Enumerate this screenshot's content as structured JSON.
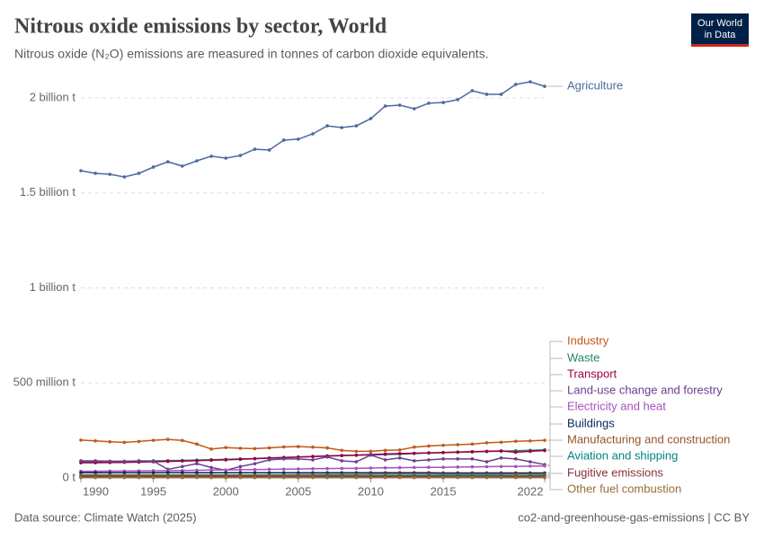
{
  "chart_data": {
    "type": "line",
    "title": "Nitrous oxide emissions by sector, World",
    "subtitle": "Nitrous oxide (N₂O) emissions are measured in tonnes of carbon dioxide equivalents.",
    "source": "Data source: Climate Watch (2025)",
    "footer_right": "co2-and-greenhouse-gas-emissions | CC BY",
    "logo": [
      "Our World",
      "in Data"
    ],
    "x": [
      1990,
      1991,
      1992,
      1993,
      1994,
      1995,
      1996,
      1997,
      1998,
      1999,
      2000,
      2001,
      2002,
      2003,
      2004,
      2005,
      2006,
      2007,
      2008,
      2009,
      2010,
      2011,
      2012,
      2013,
      2014,
      2015,
      2016,
      2017,
      2018,
      2019,
      2020,
      2021,
      2022
    ],
    "xlim": [
      1990,
      2022
    ],
    "xticks": [
      1990,
      1995,
      2000,
      2005,
      2010,
      2015,
      2022
    ],
    "ylim": [
      0,
      2100000000
    ],
    "yticks": [
      {
        "value": 0,
        "label": "0 t"
      },
      {
        "value": 500000000,
        "label": "500 million t"
      },
      {
        "value": 1000000000,
        "label": "1 billion t"
      },
      {
        "value": 1500000000,
        "label": "1.5 billion t"
      },
      {
        "value": 2000000000,
        "label": "2 billion t"
      }
    ],
    "grid": true,
    "series": [
      {
        "name": "Agriculture",
        "color": "#4c6a9c",
        "values": [
          1617000000,
          1603000000,
          1598000000,
          1584000000,
          1603000000,
          1636000000,
          1664000000,
          1641000000,
          1669000000,
          1693000000,
          1683000000,
          1697000000,
          1730000000,
          1726000000,
          1778000000,
          1783000000,
          1811000000,
          1853000000,
          1844000000,
          1853000000,
          1891000000,
          1957000000,
          1962000000,
          1943000000,
          1972000000,
          1976000000,
          1991000000,
          2038000000,
          2019000000,
          2019000000,
          2071000000,
          2085000000,
          2061000000
        ]
      },
      {
        "name": "Industry",
        "color": "#c05917",
        "values": [
          199000000,
          195000000,
          190000000,
          187000000,
          192000000,
          198000000,
          203000000,
          197000000,
          178000000,
          152000000,
          160000000,
          156000000,
          154000000,
          158000000,
          163000000,
          165000000,
          162000000,
          158000000,
          145000000,
          140000000,
          140000000,
          145000000,
          147000000,
          162000000,
          168000000,
          172000000,
          175000000,
          178000000,
          185000000,
          188000000,
          193000000,
          195000000,
          198000000
        ]
      },
      {
        "name": "Waste",
        "color": "#2c8465",
        "values": [
          85000000,
          86000000,
          87000000,
          88000000,
          89000000,
          90000000,
          91000000,
          92000000,
          94000000,
          96000000,
          98000000,
          100000000,
          102000000,
          105000000,
          108000000,
          110000000,
          112000000,
          115000000,
          117000000,
          119000000,
          121000000,
          123000000,
          125000000,
          128000000,
          131000000,
          133000000,
          135000000,
          137000000,
          139000000,
          141000000,
          143000000,
          145000000,
          148000000
        ]
      },
      {
        "name": "Transport",
        "color": "#970046",
        "values": [
          80000000,
          80000000,
          81000000,
          82000000,
          83000000,
          85000000,
          87000000,
          89000000,
          91000000,
          93000000,
          95000000,
          98000000,
          101000000,
          104000000,
          107000000,
          110000000,
          113000000,
          116000000,
          118000000,
          120000000,
          123000000,
          126000000,
          128000000,
          130000000,
          132000000,
          134000000,
          136000000,
          138000000,
          140000000,
          142000000,
          135000000,
          140000000,
          144000000
        ]
      },
      {
        "name": "Land-use change and forestry",
        "color": "#6d3e91",
        "values": [
          90000000,
          90000000,
          88000000,
          87000000,
          90000000,
          88000000,
          45000000,
          60000000,
          75000000,
          55000000,
          40000000,
          60000000,
          75000000,
          95000000,
          100000000,
          100000000,
          95000000,
          110000000,
          90000000,
          85000000,
          120000000,
          95000000,
          105000000,
          90000000,
          95000000,
          100000000,
          100000000,
          100000000,
          85000000,
          105000000,
          100000000,
          85000000,
          70000000
        ]
      },
      {
        "name": "Electricity and heat",
        "color": "#a652ba",
        "values": [
          35000000,
          35000000,
          36000000,
          36000000,
          37000000,
          38000000,
          38000000,
          39000000,
          40000000,
          41000000,
          42000000,
          43000000,
          44000000,
          45000000,
          46000000,
          47000000,
          48000000,
          49000000,
          50000000,
          50000000,
          52000000,
          53000000,
          54000000,
          55000000,
          56000000,
          56000000,
          57000000,
          58000000,
          59000000,
          60000000,
          60000000,
          62000000,
          63000000
        ]
      },
      {
        "name": "Buildings",
        "color": "#00295b",
        "values": [
          27000000,
          27000000,
          27000000,
          27000000,
          27000000,
          27000000,
          28000000,
          28000000,
          27000000,
          27000000,
          27000000,
          27000000,
          27000000,
          27000000,
          27000000,
          27000000,
          27000000,
          27000000,
          27000000,
          27000000,
          27000000,
          27000000,
          27000000,
          27000000,
          27000000,
          26000000,
          26000000,
          26000000,
          26000000,
          26000000,
          26000000,
          26000000,
          26000000
        ]
      },
      {
        "name": "Manufacturing and construction",
        "color": "#9a5129",
        "values": [
          15000000,
          15000000,
          15000000,
          15000000,
          15000000,
          15000000,
          15000000,
          15000000,
          15000000,
          15000000,
          15000000,
          15000000,
          15000000,
          16000000,
          16000000,
          17000000,
          17000000,
          18000000,
          18000000,
          18000000,
          19000000,
          19000000,
          19000000,
          19000000,
          19000000,
          19000000,
          19000000,
          19000000,
          19000000,
          19000000,
          19000000,
          19000000,
          19000000
        ]
      },
      {
        "name": "Aviation and shipping",
        "color": "#00847e",
        "values": [
          8000000,
          8000000,
          8000000,
          8000000,
          8000000,
          8000000,
          9000000,
          9000000,
          9000000,
          9000000,
          9000000,
          9000000,
          9000000,
          10000000,
          10000000,
          10000000,
          10000000,
          11000000,
          11000000,
          10000000,
          11000000,
          11000000,
          11000000,
          11000000,
          11000000,
          12000000,
          12000000,
          12000000,
          12000000,
          12000000,
          10000000,
          11000000,
          12000000
        ]
      },
      {
        "name": "Fugitive emissions",
        "color": "#883039",
        "values": [
          5000000,
          5000000,
          5000000,
          5000000,
          5000000,
          5000000,
          5000000,
          5000000,
          5000000,
          5000000,
          5000000,
          5000000,
          5000000,
          5000000,
          5000000,
          5000000,
          5000000,
          5000000,
          5000000,
          5000000,
          5000000,
          5000000,
          5000000,
          5000000,
          5000000,
          5000000,
          5000000,
          5000000,
          5000000,
          5000000,
          5000000,
          5000000,
          5000000
        ]
      },
      {
        "name": "Other fuel combustion",
        "color": "#996d39",
        "values": [
          2000000,
          2000000,
          2000000,
          2000000,
          2000000,
          2000000,
          2000000,
          2000000,
          2000000,
          2000000,
          2000000,
          2000000,
          2000000,
          2000000,
          2000000,
          2000000,
          2000000,
          2000000,
          2000000,
          2000000,
          2000000,
          2000000,
          2000000,
          2000000,
          2000000,
          2000000,
          2000000,
          2000000,
          2000000,
          2000000,
          2000000,
          2000000,
          2000000
        ]
      }
    ]
  }
}
